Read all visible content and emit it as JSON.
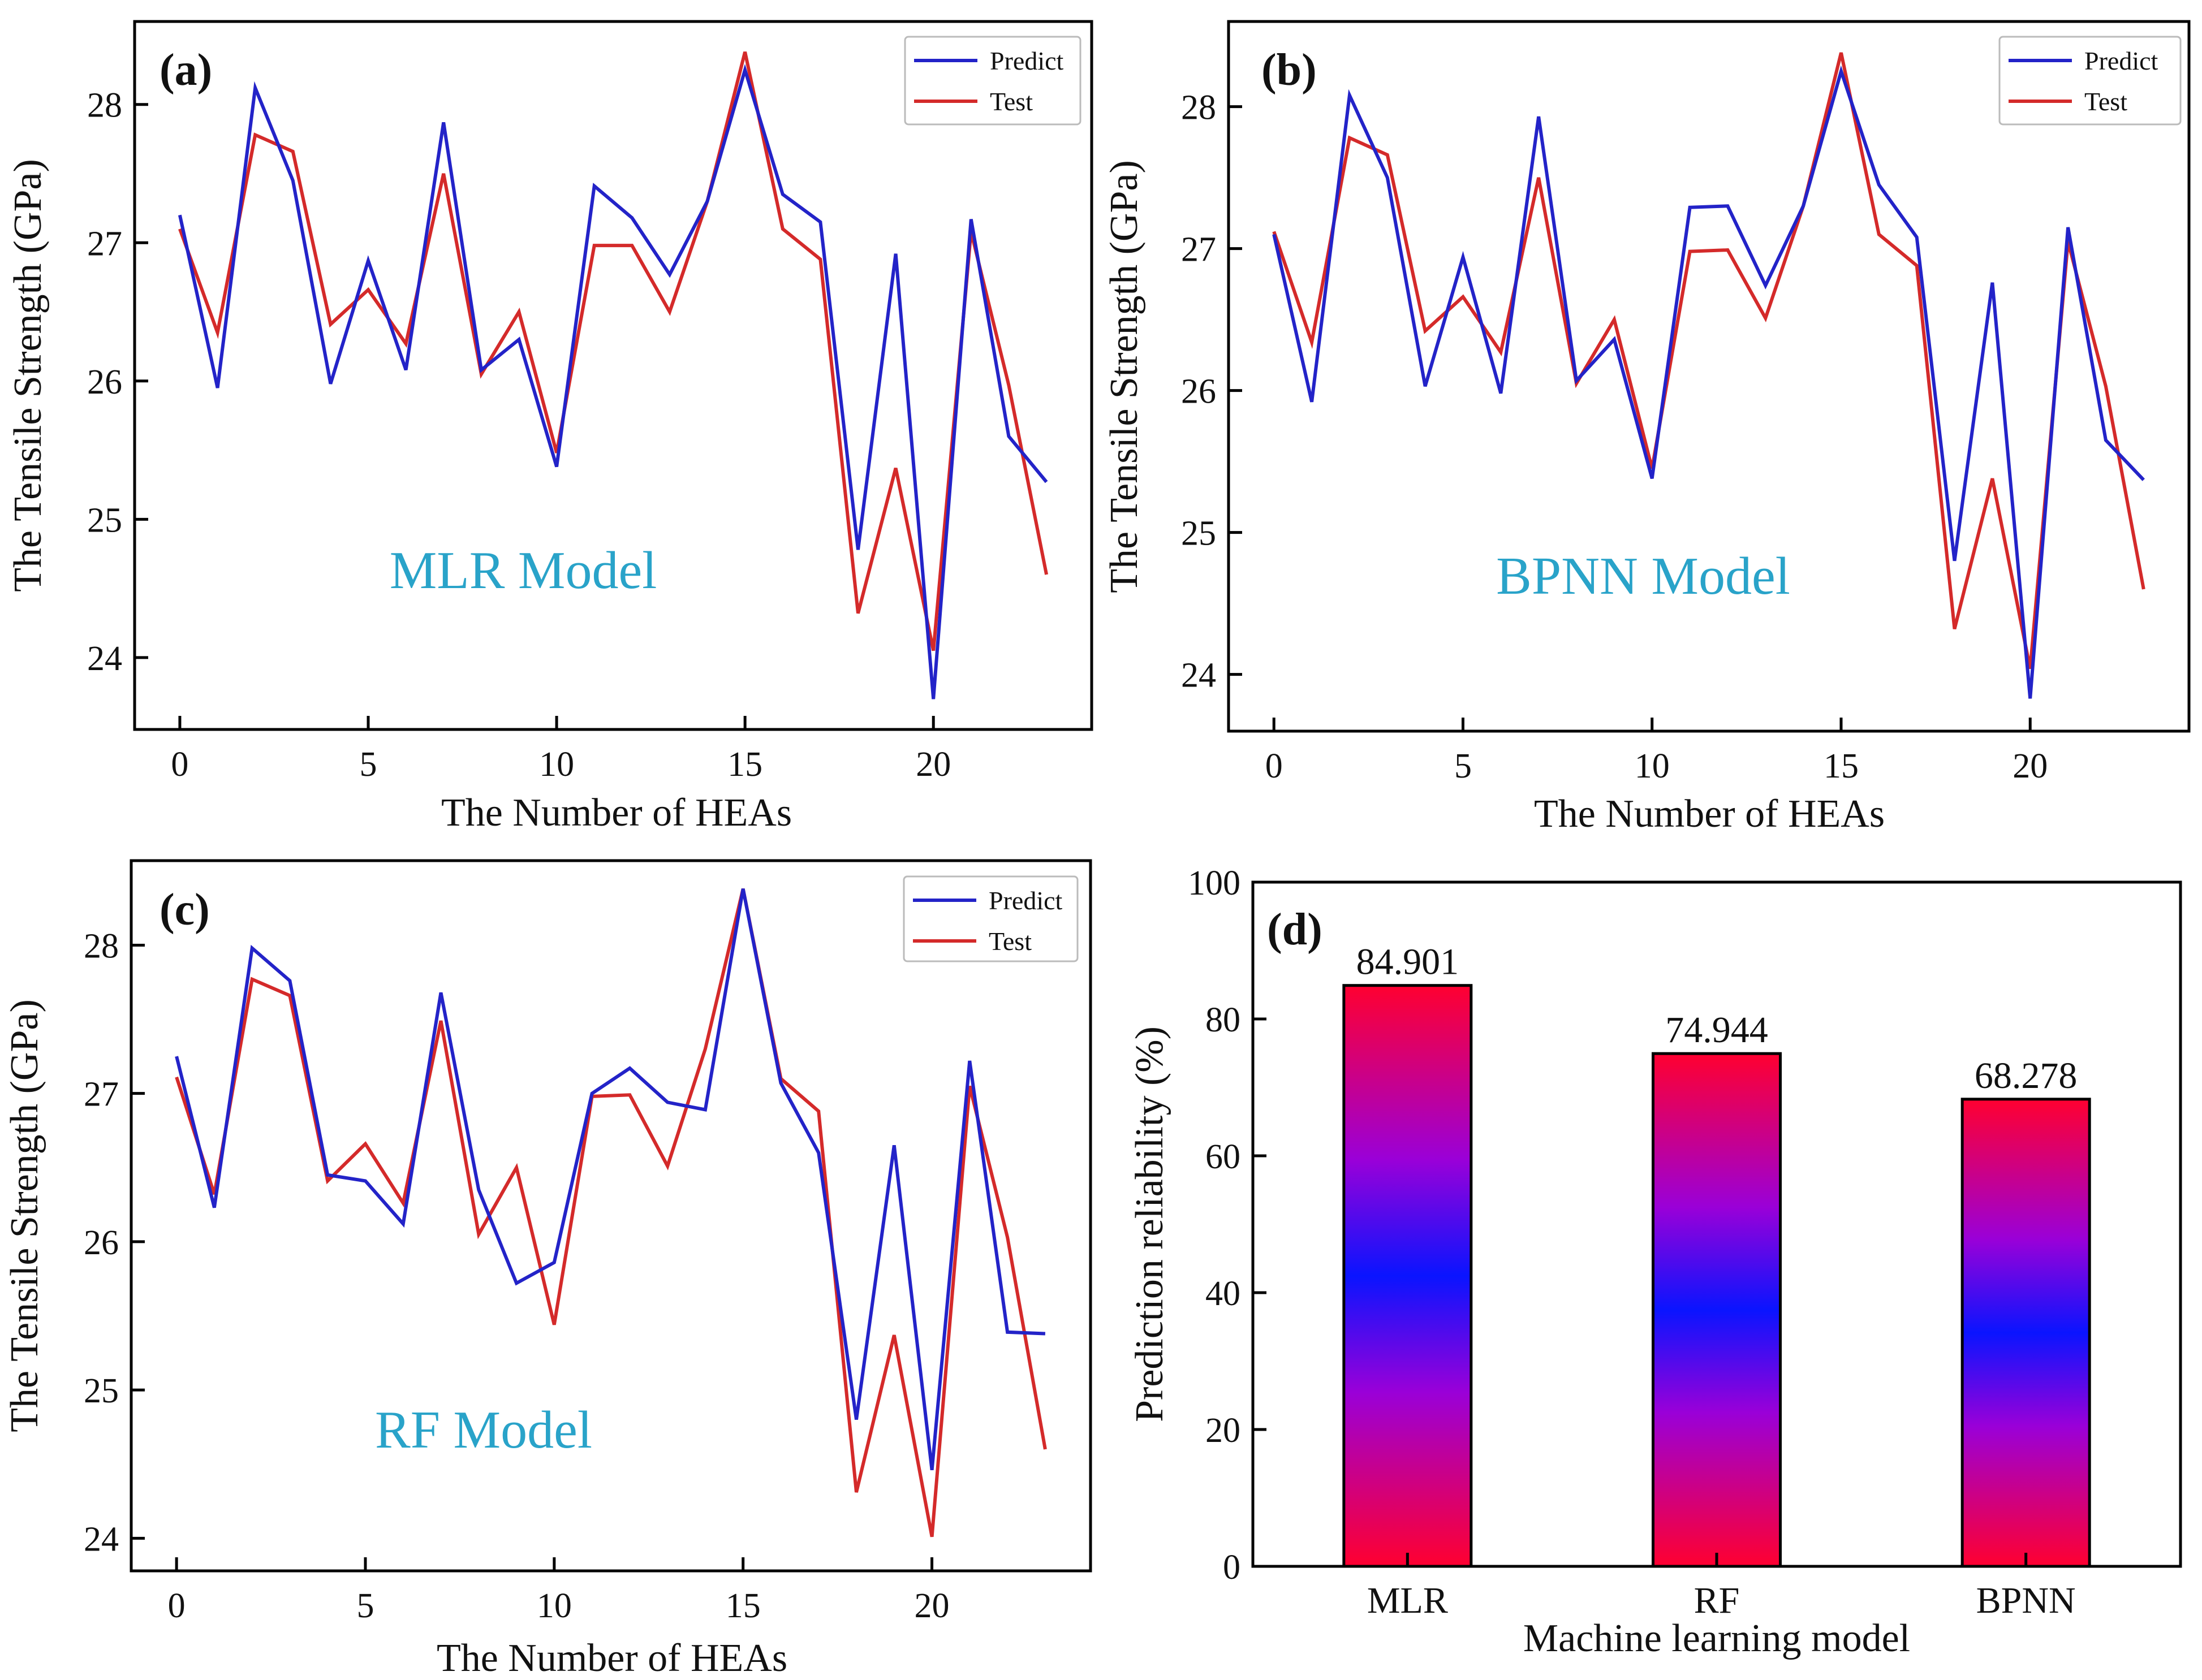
{
  "figure_name": "hea-tensile-strength-ml-comparison",
  "colors": {
    "predict": "#2323c8",
    "test": "#d42a2a",
    "axis": "#000000",
    "model_label": "#29a3c9",
    "bar_edge": "#000000",
    "bar_red": "#ff0030",
    "bar_purple": "#9a00d8",
    "bar_blue": "#0a14ff"
  },
  "chart_data": [
    {
      "panel": "(a)",
      "type": "line",
      "title": "",
      "model_label": "MLR Model",
      "xlabel": "The Number of HEAs",
      "ylabel": "The Tensile Strength (GPa)",
      "xlim": [
        -1.2,
        24.2
      ],
      "ylim": [
        23.48,
        28.6
      ],
      "xticks": [
        0,
        5,
        10,
        15,
        20
      ],
      "xtick_labels": [
        "0",
        "5",
        "10",
        "15",
        "20"
      ],
      "yticks": [
        24,
        25,
        26,
        27,
        28
      ],
      "ytick_labels": [
        "24",
        "25",
        "26",
        "27",
        "28"
      ],
      "legend": [
        "Predict",
        "Test"
      ],
      "legend_position": "top-right",
      "x": [
        0,
        1,
        2,
        3,
        4,
        5,
        6,
        7,
        8,
        9,
        10,
        11,
        12,
        13,
        14,
        15,
        16,
        17,
        18,
        19,
        20,
        21,
        22,
        23
      ],
      "series": [
        {
          "name": "Predict",
          "values": [
            27.2,
            25.95,
            28.12,
            27.45,
            25.98,
            26.87,
            26.08,
            27.87,
            26.08,
            26.3,
            25.38,
            27.41,
            27.18,
            26.77,
            27.3,
            28.25,
            27.35,
            27.15,
            24.78,
            26.92,
            23.7,
            27.17,
            25.6,
            25.27
          ]
        },
        {
          "name": "Test",
          "values": [
            27.1,
            26.35,
            27.78,
            27.66,
            26.41,
            26.66,
            26.27,
            27.5,
            26.05,
            26.5,
            25.48,
            26.98,
            26.98,
            26.5,
            27.3,
            28.38,
            27.1,
            26.88,
            24.32,
            25.37,
            24.05,
            27.08,
            25.97,
            24.6
          ]
        }
      ]
    },
    {
      "panel": "(b)",
      "type": "line",
      "title": "",
      "model_label": "BPNN Model",
      "xlabel": "The Number of HEAs",
      "ylabel": "The Tensile Strength (GPa)",
      "xlim": [
        -1.2,
        24.2
      ],
      "ylim": [
        23.6,
        28.6
      ],
      "xticks": [
        0,
        5,
        10,
        15,
        20
      ],
      "xtick_labels": [
        "0",
        "5",
        "10",
        "15",
        "20"
      ],
      "yticks": [
        24,
        25,
        26,
        27,
        28
      ],
      "ytick_labels": [
        "24",
        "25",
        "26",
        "27",
        "28"
      ],
      "legend": [
        "Predict",
        "Test"
      ],
      "legend_position": "top-right",
      "x": [
        0,
        1,
        2,
        3,
        4,
        5,
        6,
        7,
        8,
        9,
        10,
        11,
        12,
        13,
        14,
        15,
        16,
        17,
        18,
        19,
        20,
        21,
        22,
        23
      ],
      "series": [
        {
          "name": "Predict",
          "values": [
            27.1,
            25.92,
            28.08,
            27.5,
            26.03,
            26.94,
            25.98,
            27.93,
            26.07,
            26.36,
            25.38,
            27.29,
            27.3,
            26.74,
            27.3,
            28.25,
            27.45,
            27.08,
            24.8,
            26.76,
            23.83,
            27.15,
            25.65,
            25.37
          ]
        },
        {
          "name": "Test",
          "values": [
            27.12,
            26.34,
            27.78,
            27.66,
            26.42,
            26.66,
            26.27,
            27.5,
            26.05,
            26.5,
            25.45,
            26.98,
            26.99,
            26.51,
            27.3,
            28.38,
            27.1,
            26.88,
            24.32,
            25.38,
            24.04,
            27.05,
            26.03,
            24.6
          ]
        }
      ]
    },
    {
      "panel": "(c)",
      "type": "line",
      "title": "",
      "model_label": "RF Model",
      "xlabel": "The Number of HEAs",
      "ylabel": "The Tensile Strength (GPa)",
      "xlim": [
        -1.2,
        24.2
      ],
      "ylim": [
        23.78,
        28.57
      ],
      "xticks": [
        0,
        5,
        10,
        15,
        20
      ],
      "xtick_labels": [
        "0",
        "5",
        "10",
        "15",
        "20"
      ],
      "yticks": [
        24,
        25,
        26,
        27,
        28
      ],
      "ytick_labels": [
        "24",
        "25",
        "26",
        "27",
        "28"
      ],
      "legend": [
        "Predict",
        "Test"
      ],
      "legend_position": "top-right",
      "x": [
        0,
        1,
        2,
        3,
        4,
        5,
        6,
        7,
        8,
        9,
        10,
        11,
        12,
        13,
        14,
        15,
        16,
        17,
        18,
        19,
        20,
        21,
        22,
        23
      ],
      "series": [
        {
          "name": "Predict",
          "values": [
            27.25,
            26.23,
            27.98,
            27.76,
            26.45,
            26.41,
            26.12,
            27.68,
            26.35,
            25.72,
            25.86,
            27.0,
            27.17,
            26.94,
            26.89,
            28.38,
            27.07,
            26.6,
            24.8,
            26.65,
            24.46,
            27.22,
            25.39,
            25.38
          ]
        },
        {
          "name": "Test",
          "values": [
            27.11,
            26.32,
            27.77,
            27.66,
            26.41,
            26.66,
            26.26,
            27.49,
            26.05,
            26.5,
            25.44,
            26.98,
            26.99,
            26.51,
            27.3,
            28.38,
            27.1,
            26.88,
            24.31,
            25.37,
            24.01,
            27.05,
            26.03,
            24.6
          ]
        }
      ]
    },
    {
      "panel": "(d)",
      "type": "bar",
      "title": "",
      "xlabel": "Machine learning model",
      "ylabel": "Prediction reliability (%)",
      "ylim": [
        0,
        100
      ],
      "yticks": [
        0,
        20,
        40,
        60,
        80,
        100
      ],
      "ytick_labels": [
        "0",
        "20",
        "40",
        "60",
        "80",
        "100"
      ],
      "categories": [
        "MLR",
        "RF",
        "BPNN"
      ],
      "values": [
        84.901,
        74.944,
        68.278
      ],
      "value_labels": [
        "84.901",
        "74.944",
        "68.278"
      ]
    }
  ]
}
